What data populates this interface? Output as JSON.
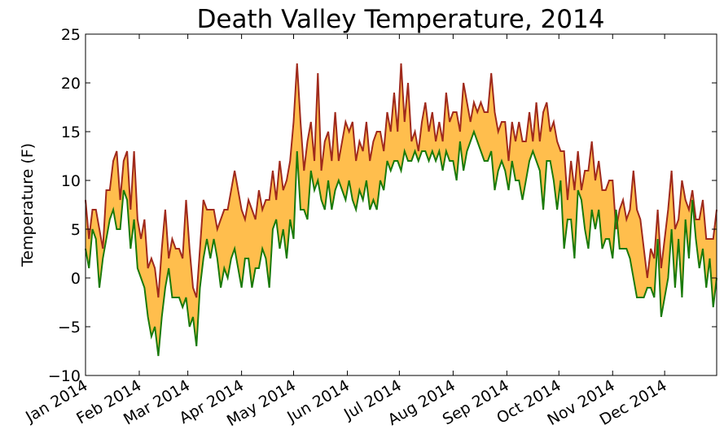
{
  "chart_data": {
    "type": "fill_between",
    "title": "Death Valley Temperature, 2014",
    "ylabel": "Temperature (F)",
    "x": [
      0,
      2,
      4,
      6,
      8,
      10,
      12,
      14,
      16,
      18,
      20,
      22,
      24,
      26,
      28,
      30,
      32,
      34,
      36,
      38,
      40,
      42,
      44,
      46,
      48,
      50,
      52,
      54,
      56,
      58,
      60,
      62,
      64,
      66,
      68,
      70,
      72,
      74,
      76,
      78,
      80,
      82,
      84,
      86,
      88,
      90,
      92,
      94,
      96,
      98,
      100,
      102,
      104,
      106,
      108,
      110,
      112,
      114,
      116,
      118,
      120,
      122,
      124,
      126,
      128,
      130,
      132,
      134,
      136,
      138,
      140,
      142,
      144,
      146,
      148,
      150,
      152,
      154,
      156,
      158,
      160,
      162,
      164,
      166,
      168,
      170,
      172,
      174,
      176,
      178,
      180,
      182,
      184,
      186,
      188,
      190,
      192,
      194,
      196,
      198,
      200,
      202,
      204,
      206,
      208,
      210,
      212,
      214,
      216,
      218,
      220,
      222,
      224,
      226,
      228,
      230,
      232,
      234,
      236,
      238,
      240,
      242,
      244,
      246,
      248,
      250,
      252,
      254,
      256,
      258,
      260,
      262,
      264,
      266,
      268,
      270,
      272,
      274,
      276,
      278,
      280,
      282,
      284,
      286,
      288,
      290,
      292,
      294,
      296,
      298,
      300,
      302,
      304,
      306,
      308,
      310,
      312,
      314,
      316,
      318,
      320,
      322,
      324,
      326,
      328,
      330,
      332,
      334,
      336,
      338,
      340,
      342,
      344,
      346,
      348,
      350,
      352,
      354,
      356,
      358,
      360,
      362,
      364
    ],
    "series": [
      {
        "color": "#a02a1c",
        "values": [
          8,
          4,
          7,
          7,
          5,
          3,
          9,
          9,
          12,
          13,
          8,
          12,
          13,
          7,
          13,
          6,
          4,
          6,
          1,
          2,
          1,
          -2,
          3,
          7,
          2,
          4,
          3,
          3,
          2,
          8,
          3,
          -1,
          -2,
          3,
          8,
          7,
          7,
          7,
          5,
          6,
          7,
          7,
          9,
          11,
          9,
          7,
          6,
          8,
          7,
          6,
          9,
          7,
          8,
          8,
          11,
          8,
          12,
          9,
          10,
          12,
          16,
          22,
          16,
          11,
          14,
          16,
          12,
          21,
          11,
          14,
          15,
          12,
          17,
          12,
          14,
          16,
          15,
          16,
          12,
          14,
          13,
          16,
          12,
          14,
          15,
          15,
          13,
          17,
          15,
          19,
          15,
          22,
          16,
          20,
          14,
          15,
          13,
          16,
          18,
          15,
          17,
          14,
          16,
          14,
          19,
          16,
          17,
          17,
          15,
          20,
          18,
          16,
          18,
          17,
          18,
          17,
          17,
          21,
          17,
          15,
          16,
          16,
          12,
          16,
          14,
          16,
          14,
          14,
          17,
          14,
          18,
          14,
          17,
          18,
          15,
          16,
          14,
          13,
          13,
          8,
          12,
          9,
          13,
          9,
          11,
          11,
          14,
          10,
          12,
          9,
          9,
          10,
          10,
          5,
          7,
          8,
          6,
          7,
          11,
          7,
          6,
          3,
          0,
          3,
          2,
          7,
          1,
          4,
          7,
          11,
          5,
          6,
          10,
          8,
          7,
          9,
          6,
          6,
          8,
          4,
          4,
          4,
          7
        ]
      },
      {
        "color": "#1a7a0a",
        "values": [
          3,
          1,
          5,
          4,
          -1,
          2,
          4,
          6,
          7,
          5,
          5,
          9,
          8,
          3,
          6,
          1,
          0,
          -1,
          -4,
          -6,
          -5,
          -8,
          -4,
          -1,
          1,
          -2,
          -2,
          -2,
          -3,
          -2,
          -5,
          -4,
          -7,
          -1,
          2,
          4,
          2,
          4,
          2,
          -1,
          1,
          0,
          2,
          3,
          1,
          -1,
          2,
          2,
          -1,
          1,
          1,
          3,
          2,
          -1,
          5,
          6,
          3,
          5,
          2,
          6,
          4,
          13,
          7,
          7,
          6,
          11,
          9,
          10,
          8,
          7,
          10,
          7,
          9,
          10,
          9,
          8,
          10,
          8,
          7,
          9,
          8,
          10,
          7,
          8,
          7,
          10,
          9,
          12,
          11,
          12,
          12,
          11,
          13,
          12,
          12,
          13,
          12,
          13,
          13,
          12,
          13,
          12,
          13,
          11,
          13,
          12,
          12,
          10,
          14,
          11,
          13,
          14,
          15,
          14,
          13,
          12,
          12,
          13,
          9,
          11,
          12,
          11,
          9,
          12,
          10,
          10,
          8,
          10,
          12,
          13,
          12,
          11,
          7,
          12,
          12,
          10,
          7,
          10,
          3,
          6,
          6,
          2,
          9,
          8,
          5,
          3,
          7,
          5,
          7,
          3,
          4,
          4,
          2,
          7,
          3,
          3,
          3,
          2,
          0,
          -2,
          -2,
          -2,
          -1,
          -1,
          -2,
          4,
          -4,
          -2,
          0,
          5,
          -1,
          4,
          -2,
          6,
          2,
          8,
          4,
          1,
          3,
          -1,
          2,
          -3,
          0
        ]
      }
    ],
    "fill_color": "#ffbe4d",
    "xlim": [
      0,
      364
    ],
    "xticks": [
      {
        "value": 0,
        "label": "Jan 2014"
      },
      {
        "value": 31,
        "label": "Feb 2014"
      },
      {
        "value": 59,
        "label": "Mar 2014"
      },
      {
        "value": 90,
        "label": "Apr 2014"
      },
      {
        "value": 120,
        "label": "May 2014"
      },
      {
        "value": 151,
        "label": "Jun 2014"
      },
      {
        "value": 181,
        "label": "Jul 2014"
      },
      {
        "value": 212,
        "label": "Aug 2014"
      },
      {
        "value": 243,
        "label": "Sep 2014"
      },
      {
        "value": 273,
        "label": "Oct 2014"
      },
      {
        "value": 304,
        "label": "Nov 2014"
      },
      {
        "value": 334,
        "label": "Dec 2014"
      }
    ],
    "ylim": [
      -10,
      25
    ],
    "yticks": [
      {
        "value": -10,
        "label": "−10"
      },
      {
        "value": -5,
        "label": "−5"
      },
      0,
      5,
      10,
      15,
      20,
      25
    ]
  }
}
